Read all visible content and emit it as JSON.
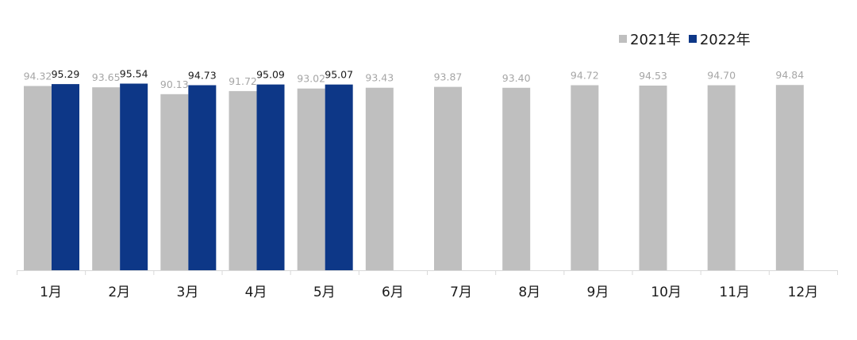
{
  "chart_data": {
    "type": "bar",
    "categories": [
      "1月",
      "2月",
      "3月",
      "4月",
      "5月",
      "6月",
      "7月",
      "8月",
      "9月",
      "10月",
      "11月",
      "12月"
    ],
    "series": [
      {
        "name": "2021年",
        "color": "#bfbfbf",
        "values": [
          94.32,
          93.65,
          90.13,
          91.72,
          93.02,
          93.43,
          93.87,
          93.4,
          94.72,
          94.53,
          94.7,
          94.84
        ],
        "labels": [
          "94.32",
          "93.65",
          "90.13",
          "91.72",
          "93.02",
          "93.43",
          "93.87",
          "93.40",
          "94.72",
          "94.53",
          "94.70",
          "94.84"
        ]
      },
      {
        "name": "2022年",
        "color": "#0d3787",
        "values": [
          95.29,
          95.54,
          94.73,
          95.09,
          95.07,
          null,
          null,
          null,
          null,
          null,
          null,
          null
        ],
        "labels": [
          "95.29",
          "95.54",
          "94.73",
          "95.09",
          "95.07",
          "",
          "",
          "",
          "",
          "",
          "",
          ""
        ]
      }
    ],
    "label_colors": {
      "2021年": "#a6a6a6",
      "2022年": "#1a1a1a"
    },
    "axis_color": "#d9d9d9",
    "tick_label_color": "#1a1a1a",
    "ylim": [
      0,
      100
    ],
    "grid": false,
    "legend": "top-right"
  }
}
